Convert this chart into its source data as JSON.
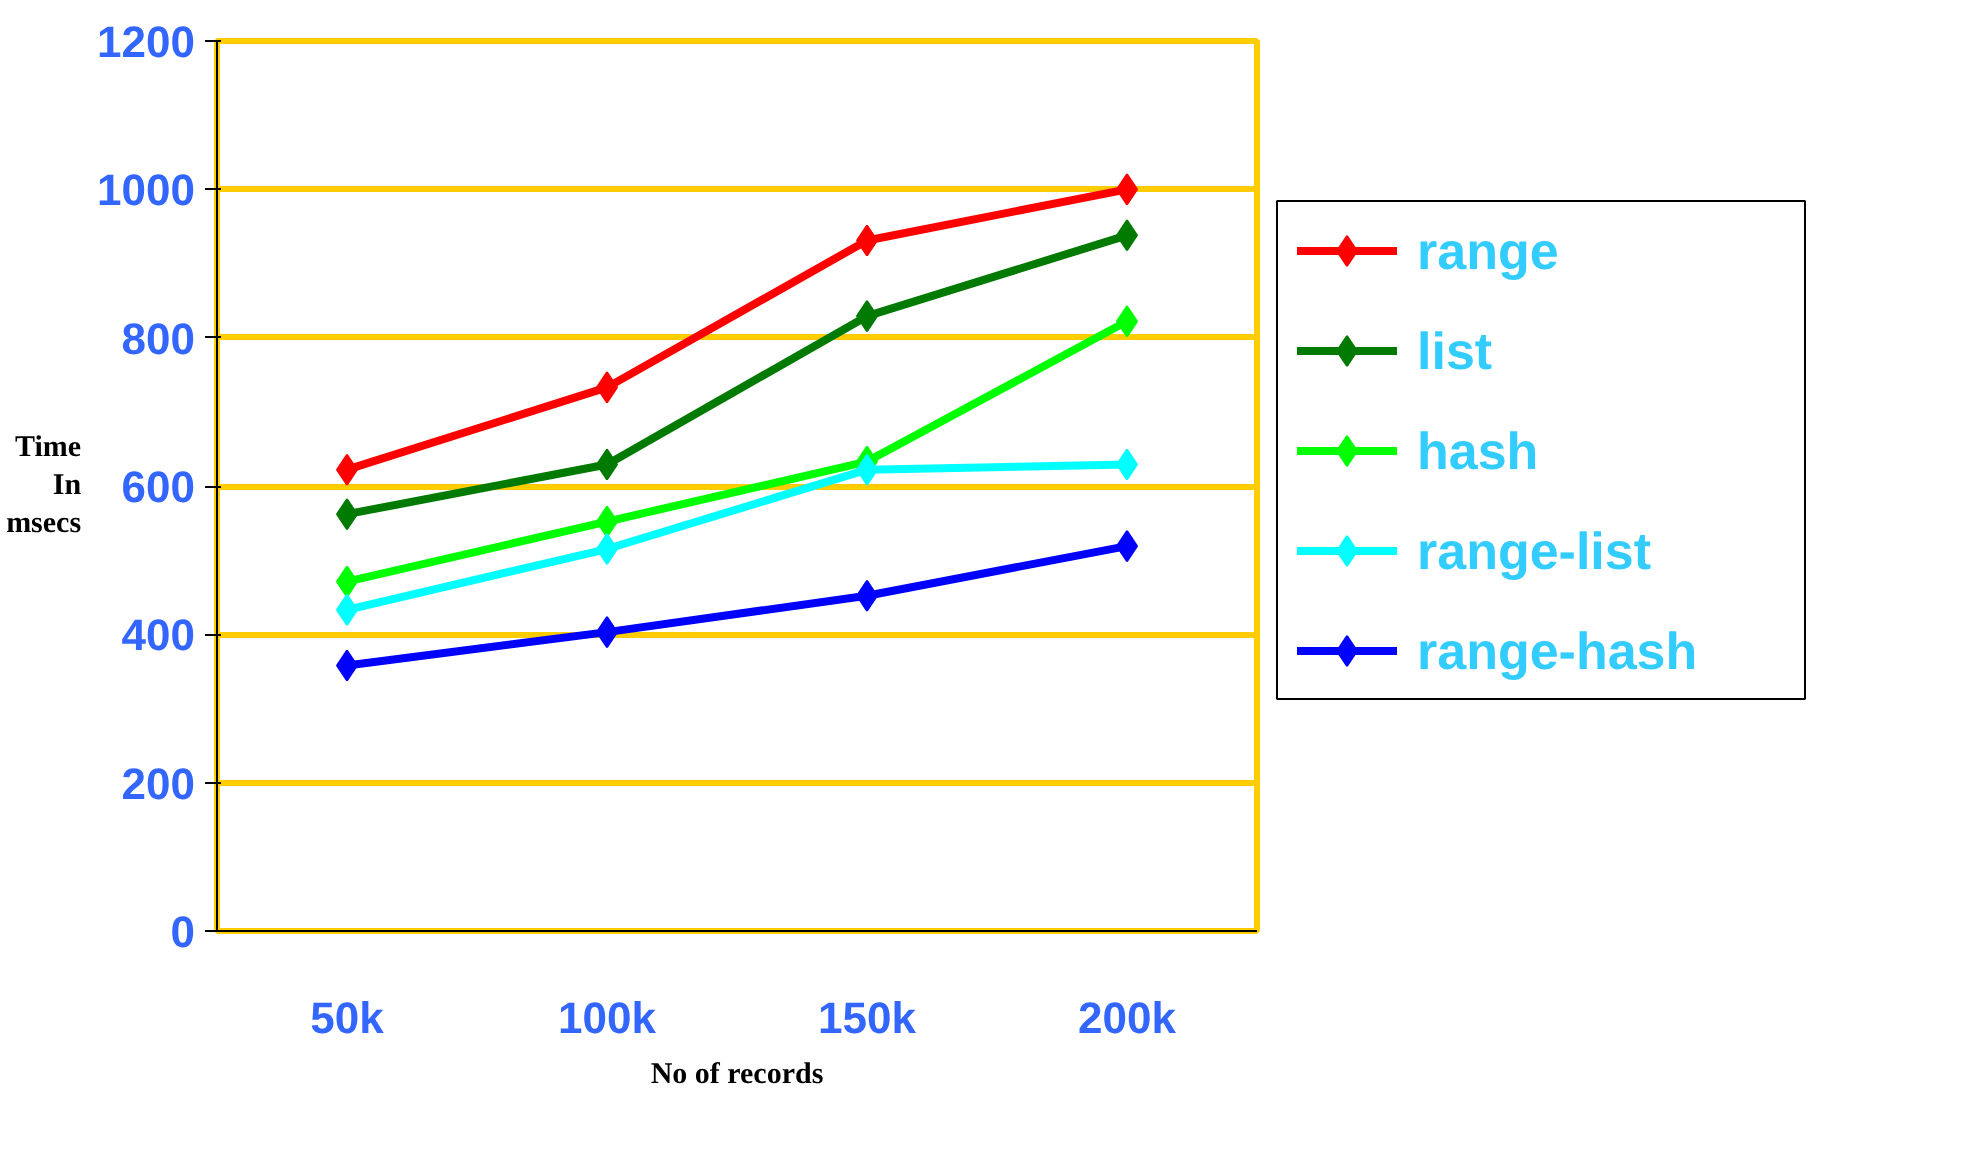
{
  "chart_data": {
    "type": "line",
    "xlabel": "No of records",
    "ylabel": "Time\nIn\nmsecs",
    "categories": [
      "50k",
      "100k",
      "150k",
      "200k"
    ],
    "series": [
      {
        "name": "range",
        "color": "#ff0000",
        "values": [
          622,
          733,
          931,
          1000
        ]
      },
      {
        "name": "list",
        "color": "#007a00",
        "values": [
          562,
          629,
          829,
          938
        ]
      },
      {
        "name": "hash",
        "color": "#00ff00",
        "values": [
          471,
          552,
          633,
          822
        ]
      },
      {
        "name": "range-list",
        "color": "#00ffff",
        "values": [
          433,
          515,
          622,
          629
        ]
      },
      {
        "name": "range-hash",
        "color": "#0000ff",
        "values": [
          358,
          403,
          452,
          519
        ]
      }
    ],
    "ylim": [
      0,
      1200
    ],
    "yticks": [
      0,
      200,
      400,
      600,
      800,
      1000,
      1200
    ],
    "grid": "y",
    "legend": "right",
    "marker": "diamond",
    "line_style": "solid"
  }
}
